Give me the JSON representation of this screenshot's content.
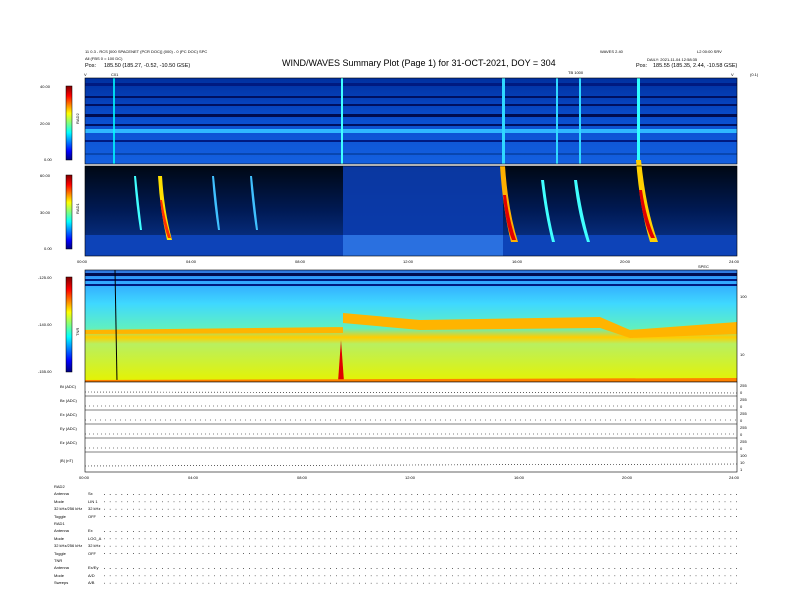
{
  "header": {
    "title": "WIND/WAVES Summary Plot (Page 1) for 31-OCT-2021, DOY = 304",
    "left_line1": "11 0.3 - RCS [000 SPACENET (PCR DOC)] (000) - 0 (PC DOC) SPC",
    "left_line2": "All (FBS 0 = 100 DC)",
    "left_line3": "Pos:",
    "left_line3_values": "185.50 (185.27, -0.52, -10.50 GSE)",
    "right_line1": "WAVES 2.40",
    "right_line1b": "L2 00:00 SRV",
    "right_line2": "DAILY: 2021-11-04 12:58:35",
    "right_line3": "Pos:",
    "right_line3_values": "185.55 (185.35, 2.44, -10.58 GSE)",
    "top_marker_left": "C01",
    "top_marker_mid": "TB 1000",
    "top_left_tick": "V",
    "top_right_tick": "V",
    "top_right_code": "(0.1)"
  },
  "chart_data": [
    {
      "type": "heatmap",
      "panel": "RAD2",
      "ylabel": "RAD2",
      "ytick_labels": [
        "40.00",
        "20.00",
        "0.00"
      ],
      "colormap": "jet"
    },
    {
      "type": "heatmap",
      "panel": "RAD1",
      "ylabel": "RAD1",
      "ytick_labels": [
        "60.00",
        "30.00",
        "0.00"
      ],
      "xtick_labels": [
        "00:00",
        "04:00",
        "08:00",
        "12:00",
        "16:00",
        "20:00",
        "24:00"
      ],
      "colormap": "jet"
    },
    {
      "type": "heatmap",
      "panel": "TNR",
      "ylabel": "TNR",
      "ytick_labels": [
        "-125.00",
        "-140.00",
        "-155.00"
      ],
      "right_tick_labels": [
        "100",
        "10"
      ],
      "corner_label": "SPEC",
      "colormap": "jet"
    },
    {
      "type": "line",
      "panel": "housekeeping",
      "rows": [
        {
          "label": "Bt (ADC)",
          "ticks": [
            "255",
            "0"
          ]
        },
        {
          "label": "Bx (ADC)",
          "ticks": [
            "255",
            "0"
          ]
        },
        {
          "label": "Ex (ADC)",
          "ticks": [
            "255",
            "0"
          ]
        },
        {
          "label": "Ey (ADC)",
          "ticks": [
            "255",
            "0"
          ]
        },
        {
          "label": "Ez (ADC)",
          "ticks": [
            "255",
            "0"
          ]
        },
        {
          "label": "|B| (nT)",
          "ticks": [
            "100",
            "10",
            "1"
          ]
        }
      ],
      "xtick_labels": [
        "00:00",
        "04:00",
        "08:00",
        "12:00",
        "16:00",
        "20:00",
        "24:00"
      ]
    }
  ],
  "footer": {
    "rows": [
      {
        "label": "RAD2",
        "value": ""
      },
      {
        "label": "Antenna",
        "value": "Sx"
      },
      {
        "label": "Mode",
        "value": "LIN 1"
      },
      {
        "label": "32 kHz/256 kHz",
        "value": "32 kHz"
      },
      {
        "label": "Toggle",
        "value": "OFF"
      },
      {
        "label": "RAD1",
        "value": ""
      },
      {
        "label": "Antenna",
        "value": "Ex"
      },
      {
        "label": "Mode",
        "value": "LOG_A"
      },
      {
        "label": "32 kHz/256 kHz",
        "value": "32 kHz"
      },
      {
        "label": "Toggle",
        "value": "OFF"
      },
      {
        "label": "TNR",
        "value": ""
      },
      {
        "label": "Antenna",
        "value": "Ex/Ey"
      },
      {
        "label": "Mode",
        "value": "A/D"
      },
      {
        "label": "Sweeps",
        "value": "A/B"
      }
    ]
  }
}
